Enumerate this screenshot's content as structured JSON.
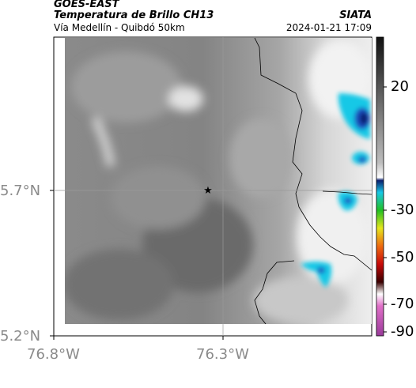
{
  "header": {
    "satellite": "GOES-EAST",
    "product": "Temperatura de Brillo CH13",
    "region": "Vía Medellín - Quibdó 50km",
    "agency": "SIATA",
    "datetime": "2024-01-21 17:09"
  },
  "axes": {
    "lat_ticks": [
      "5.7°N",
      "5.2°N"
    ],
    "lon_ticks": [
      "76.8°W",
      "76.3°W"
    ]
  },
  "colorbar": {
    "tick_labels": [
      "20",
      "-30",
      "-50",
      "-70",
      "-90"
    ]
  },
  "marker": {
    "icon": "star-icon"
  },
  "colors": {
    "cold_cyan": "#18c8e6",
    "cold_blue": "#1a4fbf",
    "cold_navy": "#0a1e6e"
  }
}
